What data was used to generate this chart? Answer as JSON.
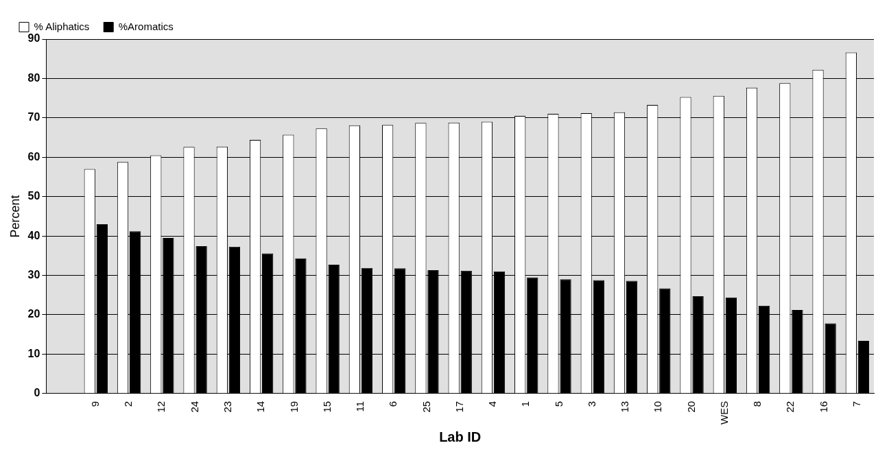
{
  "chart_data": {
    "type": "bar",
    "xlabel": "Lab ID",
    "ylabel": "Percent",
    "categories": [
      null,
      "9",
      "2",
      "12",
      "24",
      "23",
      "14",
      "19",
      "15",
      "11",
      "6",
      "25",
      "17",
      "4",
      "1",
      "5",
      "3",
      "13",
      "10",
      "20",
      "WES",
      "8",
      "22",
      "16",
      "7"
    ],
    "series": [
      {
        "name": "% Aliphatics",
        "color": "#ffffff",
        "values": [
          null,
          57,
          58.8,
          60.5,
          62.6,
          62.7,
          64.4,
          65.7,
          67.3,
          68.1,
          68.2,
          68.7,
          68.8,
          69,
          70.5,
          71,
          71.2,
          71.4,
          73.3,
          75.3,
          75.6,
          77.7,
          78.8,
          82.2,
          86.6
        ]
      },
      {
        "name": "%Aromatics",
        "color": "#000000",
        "values": [
          null,
          43,
          41.2,
          39.5,
          37.4,
          37.3,
          35.6,
          34.3,
          32.7,
          31.9,
          31.8,
          31.3,
          31.2,
          31,
          29.5,
          29,
          28.8,
          28.6,
          26.7,
          24.7,
          24.4,
          22.3,
          21.2,
          17.8,
          13.4
        ]
      }
    ],
    "ylim": [
      0,
      90
    ],
    "yticks": [
      0,
      10,
      20,
      30,
      40,
      50,
      60,
      70,
      80,
      90
    ],
    "grid": "y",
    "legend": "top left"
  }
}
